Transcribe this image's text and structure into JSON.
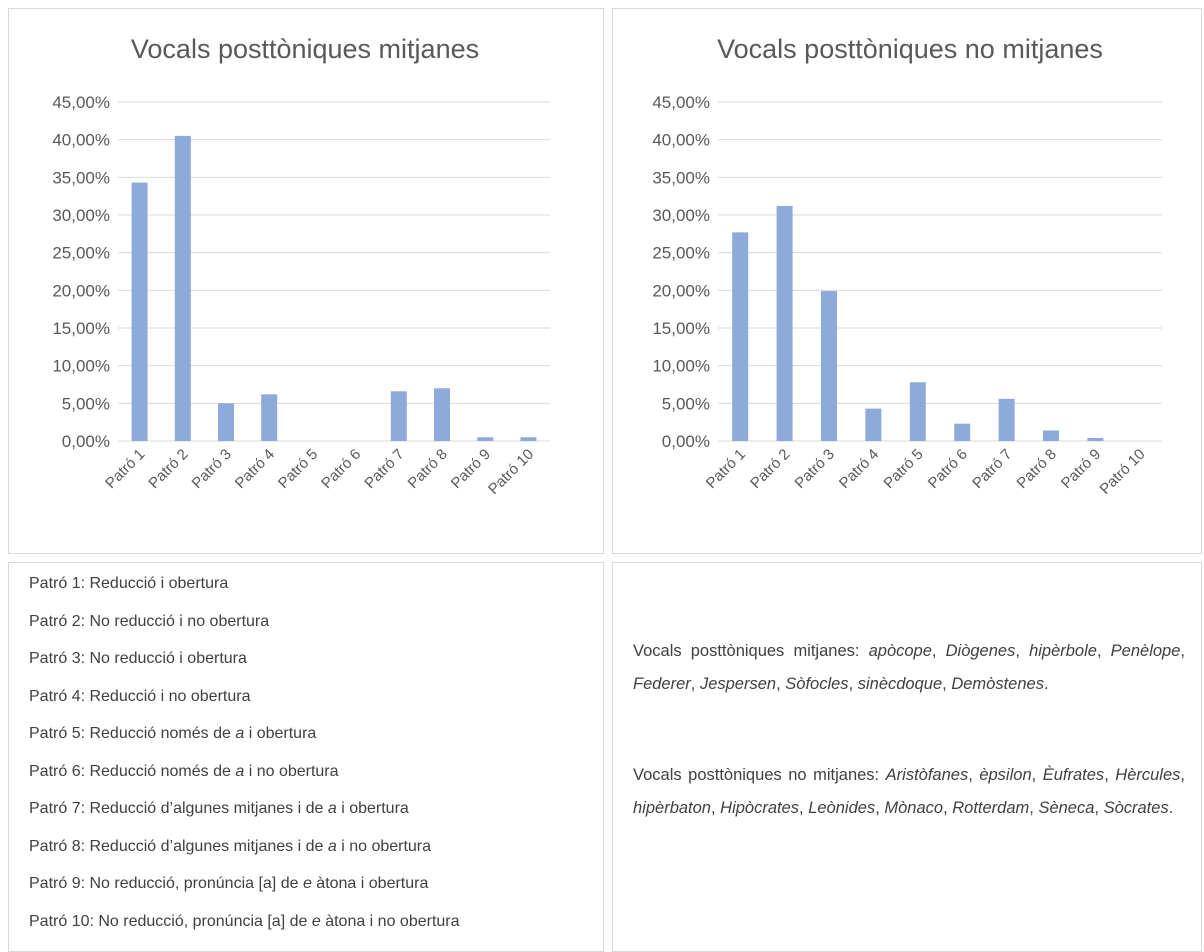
{
  "chart_data": [
    {
      "type": "bar",
      "title": "Vocals posttòniques mitjanes",
      "categories": [
        "Patró 1",
        "Patró 2",
        "Patró 3",
        "Patró 4",
        "Patró 5",
        "Patró 6",
        "Patró 7",
        "Patró 8",
        "Patró 9",
        "Patró 10"
      ],
      "values": [
        34.3,
        40.5,
        5.0,
        6.2,
        0,
        0,
        6.6,
        7.0,
        0.5,
        0.5
      ],
      "color": "#8eaadb",
      "ylim": [
        0,
        45
      ],
      "yticks": [
        {
          "value": 0,
          "label": "0,00%"
        },
        {
          "value": 5,
          "label": "5,00%"
        },
        {
          "value": 10,
          "label": "10,00%"
        },
        {
          "value": 15,
          "label": "15,00%"
        },
        {
          "value": 20,
          "label": "20,00%"
        },
        {
          "value": 25,
          "label": "25,00%"
        },
        {
          "value": 30,
          "label": "30,00%"
        },
        {
          "value": 35,
          "label": "35,00%"
        },
        {
          "value": 40,
          "label": "40,00%"
        },
        {
          "value": 45,
          "label": "45,00%"
        }
      ],
      "grid": true
    },
    {
      "type": "bar",
      "title": "Vocals posttòniques no mitjanes",
      "categories": [
        "Patró 1",
        "Patró 2",
        "Patró 3",
        "Patró 4",
        "Patró 5",
        "Patró 6",
        "Patró 7",
        "Patró 8",
        "Patró 9",
        "Patró 10"
      ],
      "values": [
        27.7,
        31.2,
        19.9,
        4.3,
        7.8,
        2.3,
        5.6,
        1.4,
        0.4,
        0
      ],
      "color": "#8eaadb",
      "ylim": [
        0,
        45
      ],
      "yticks": [
        {
          "value": 0,
          "label": "0,00%"
        },
        {
          "value": 5,
          "label": "5,00%"
        },
        {
          "value": 10,
          "label": "10,00%"
        },
        {
          "value": 15,
          "label": "15,00%"
        },
        {
          "value": 20,
          "label": "20,00%"
        },
        {
          "value": 25,
          "label": "25,00%"
        },
        {
          "value": 30,
          "label": "30,00%"
        },
        {
          "value": 35,
          "label": "35,00%"
        },
        {
          "value": 40,
          "label": "40,00%"
        },
        {
          "value": 45,
          "label": "45,00%"
        }
      ],
      "grid": true
    }
  ],
  "pattern_descriptions": [
    [
      "Patró 1: Reducció i obertura"
    ],
    [
      "Patró 2: No reducció i no obertura"
    ],
    [
      "Patró 3: No reducció i obertura"
    ],
    [
      "Patró 4: Reducció i no obertura"
    ],
    [
      "Patró 5: Reducció només de ",
      {
        "em": "a"
      },
      " i obertura"
    ],
    [
      "Patró 6: Reducció només de ",
      {
        "em": "a"
      },
      " i no obertura"
    ],
    [
      "Patró 7: Reducció d’algunes mitjanes i de ",
      {
        "em": "a"
      },
      " i obertura"
    ],
    [
      "Patró 8: Reducció d’algunes mitjanes i de ",
      {
        "em": "a"
      },
      " i no obertura"
    ],
    [
      "Patró 9: No reducció, pronúncia [a] de ",
      {
        "em": "e"
      },
      " àtona i obertura"
    ],
    [
      "Patró 10: No reducció, pronúncia [a] de ",
      {
        "em": "e"
      },
      " àtona i no obertura"
    ]
  ],
  "word_lists": [
    [
      "Vocals posttòniques mitjanes: ",
      {
        "em": "apòcope"
      },
      ", ",
      {
        "em": "Diògenes"
      },
      ", ",
      {
        "em": "hipèrbole"
      },
      ", ",
      {
        "em": "Penèlope"
      },
      ", ",
      {
        "em": "Federer"
      },
      ", ",
      {
        "em": "Jespersen"
      },
      ", ",
      {
        "em": "Sòfocles"
      },
      ", ",
      {
        "em": "sinècdoque"
      },
      ", ",
      {
        "em": "Demòstenes"
      },
      "."
    ],
    [
      "Vocals posttòniques no mitjanes: ",
      {
        "em": "Aristòfanes"
      },
      ", ",
      {
        "em": "èpsilon"
      },
      ", ",
      {
        "em": "Èufrates"
      },
      ", ",
      {
        "em": "Hèrcules"
      },
      ", ",
      {
        "em": "hipèrbaton"
      },
      ", ",
      {
        "em": "Hipòcrates"
      },
      ", ",
      {
        "em": "Leònides"
      },
      ", ",
      {
        "em": "Mònaco"
      },
      ", ",
      {
        "em": "Rotterdam"
      },
      ", ",
      {
        "em": "Sèneca"
      },
      ", ",
      {
        "em": "Sòcrates"
      },
      "."
    ]
  ]
}
